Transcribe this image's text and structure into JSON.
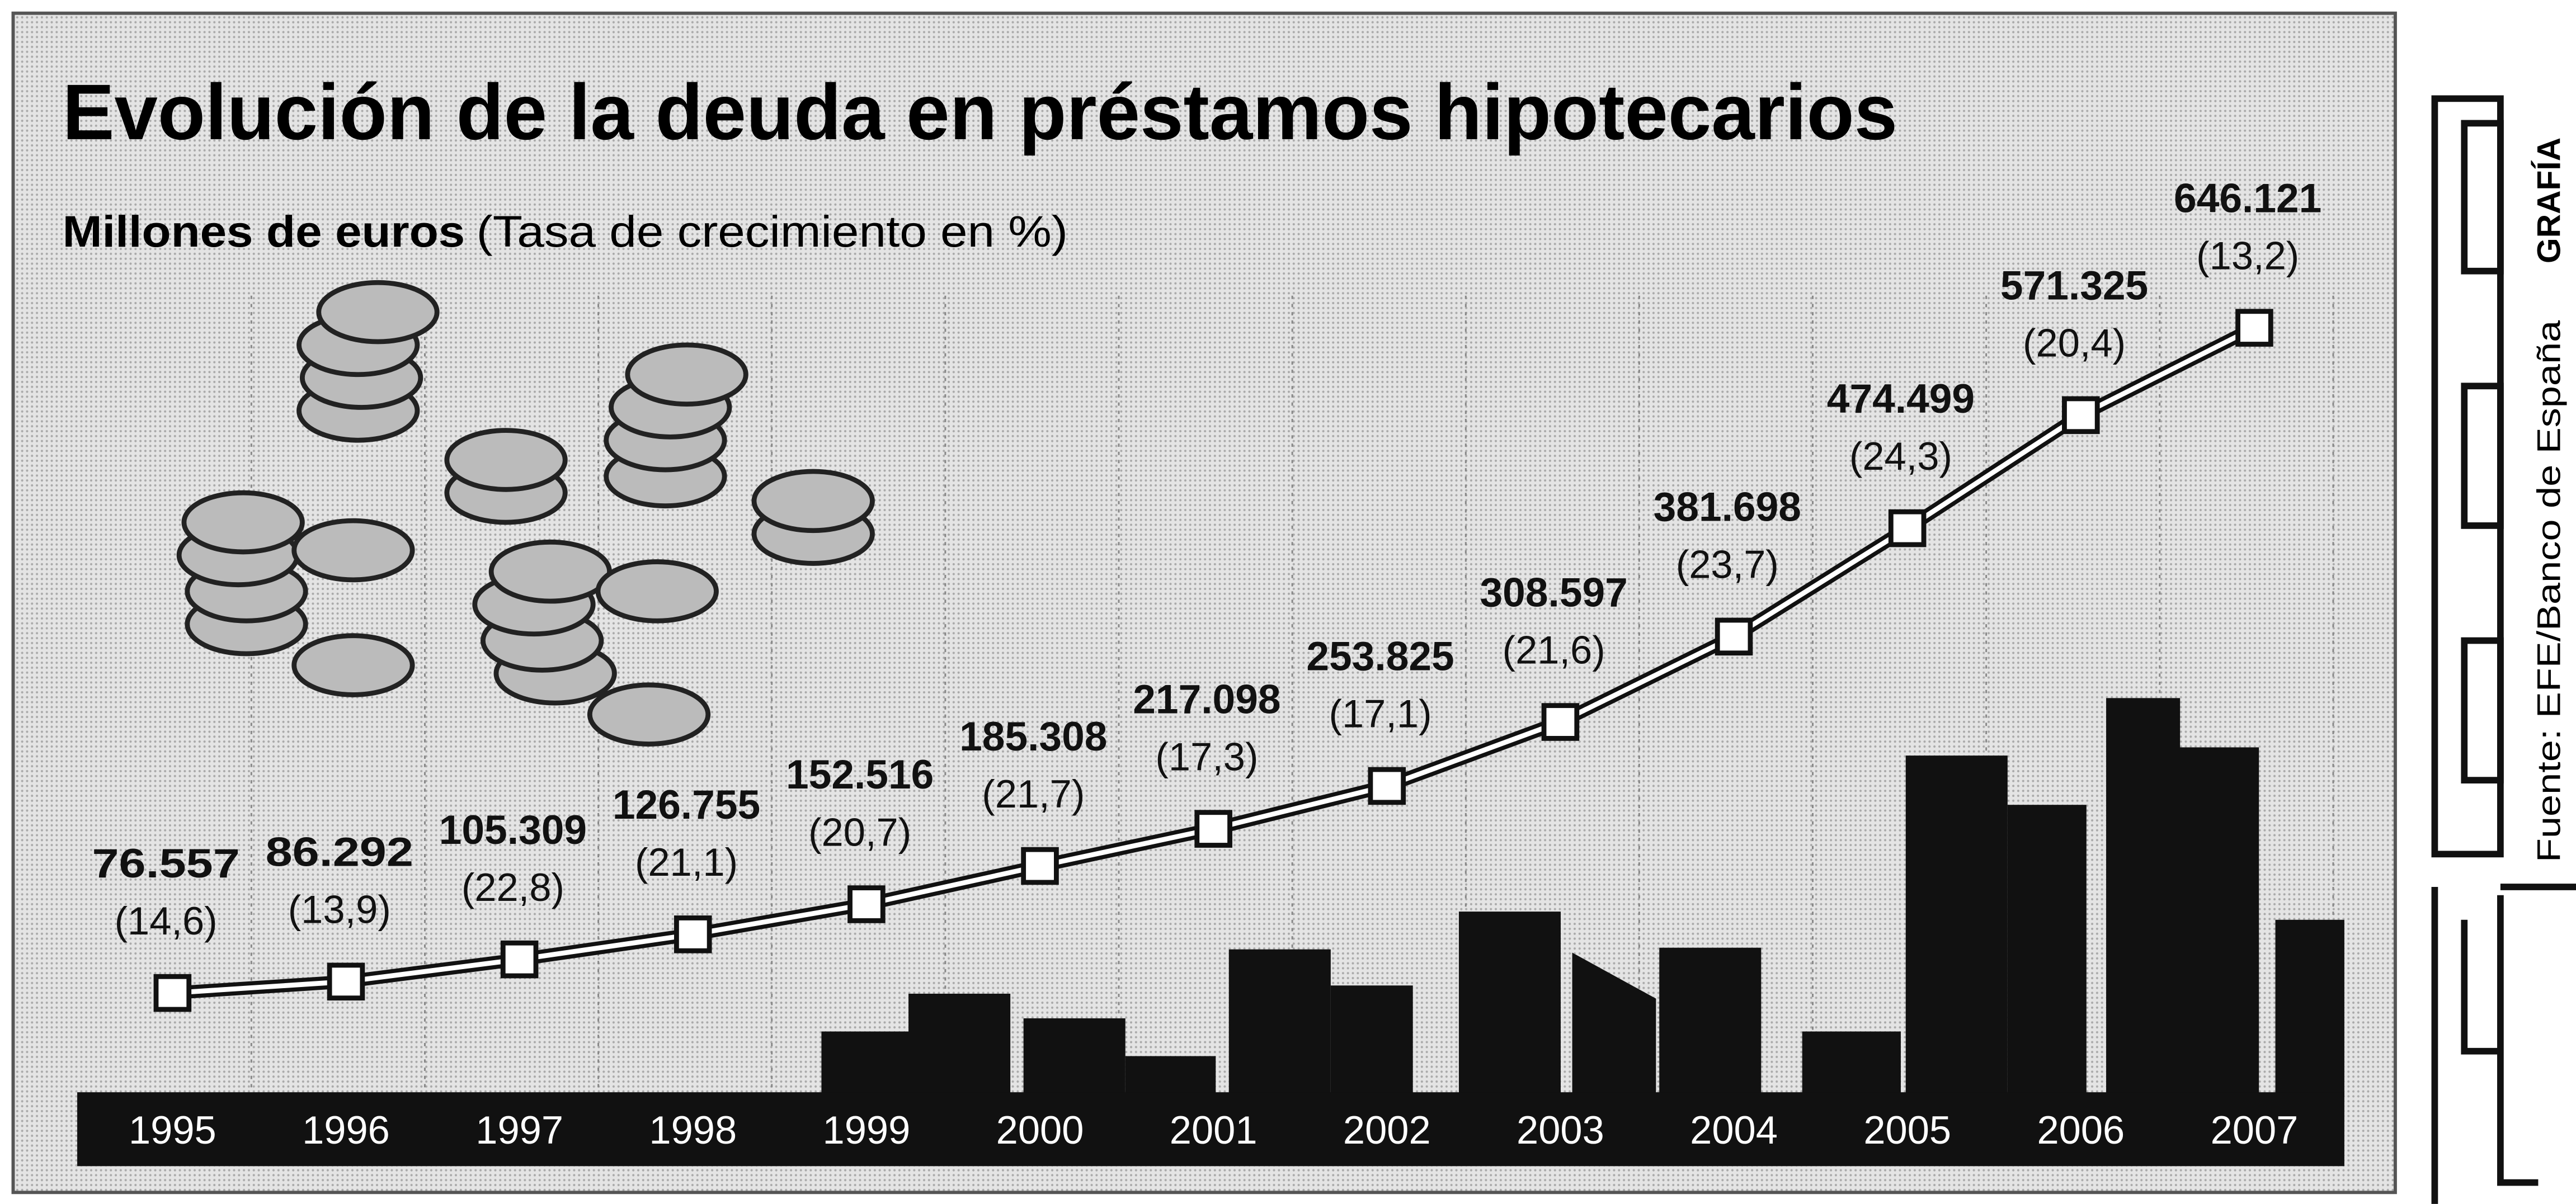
{
  "chart_data": {
    "type": "line",
    "title": "Evolución de la deuda en préstamos hipotecarios",
    "subtitle_bold": "Millones de euros",
    "subtitle": "(Tasa de crecimiento en %)",
    "brand": "GRAFÍA",
    "source": "Fuente: EFE/Banco de España",
    "categories": [
      "1995",
      "1996",
      "1997",
      "1998",
      "1999",
      "2000",
      "2001",
      "2002",
      "2003",
      "2004",
      "2005",
      "2006",
      "2007"
    ],
    "values": [
      76557,
      86292,
      105309,
      126755,
      152516,
      185308,
      217098,
      253825,
      308597,
      381698,
      474499,
      571325,
      646121
    ],
    "value_labels": [
      "76.557",
      "86.292",
      "105.309",
      "126.755",
      "152.516",
      "185.308",
      "217.098",
      "253.825",
      "308.597",
      "381.698",
      "474.499",
      "571.325",
      "646.121"
    ],
    "growth_rates": [
      14.6,
      13.9,
      22.8,
      21.1,
      20.7,
      21.7,
      17.3,
      17.1,
      21.6,
      23.7,
      24.3,
      20.4,
      13.2
    ],
    "growth_labels": [
      "(14,6)",
      "(13,9)",
      "(22,8)",
      "(21,1)",
      "(20,7)",
      "(21,7)",
      "(17,3)",
      "(17,1)",
      "(21,6)",
      "(23,7)",
      "(24,3)",
      "(20,4)",
      "(13,2)"
    ],
    "color": "#111111",
    "ylim": [
      0,
      900000
    ]
  }
}
